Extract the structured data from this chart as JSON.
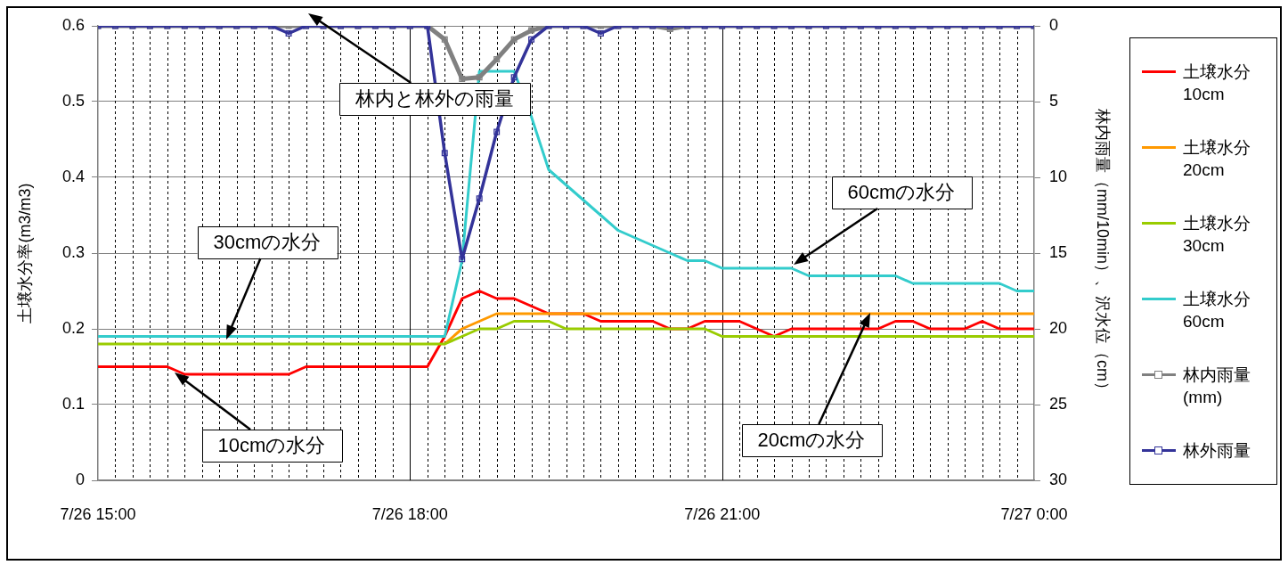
{
  "chart_data": {
    "type": "line",
    "ylabel": "土壌水分率(m3/m3)",
    "y2label": "林内雨量（mm/10min）、沢水位（cm）",
    "x": [
      "--07-26T15:00",
      "--07-26T15:10",
      "--07-26T15:20",
      "--07-26T15:30",
      "--07-26T15:40",
      "--07-26T15:50",
      "--07-26T16:00",
      "--07-26T16:10",
      "--07-26T16:20",
      "--07-26T16:30",
      "--07-26T16:40",
      "--07-26T16:50",
      "--07-26T17:00",
      "--07-26T17:10",
      "--07-26T17:20",
      "--07-26T17:30",
      "--07-26T17:40",
      "--07-26T17:50",
      "--07-26T18:00",
      "--07-26T18:10",
      "--07-26T18:20",
      "--07-26T18:30",
      "--07-26T18:40",
      "--07-26T18:50",
      "--07-26T19:00",
      "--07-26T19:10",
      "--07-26T19:20",
      "--07-26T19:30",
      "--07-26T19:40",
      "--07-26T19:50",
      "--07-26T20:00",
      "--07-26T20:10",
      "--07-26T20:20",
      "--07-26T20:30",
      "--07-26T20:40",
      "--07-26T20:50",
      "--07-26T21:00",
      "--07-26T21:10",
      "--07-26T21:20",
      "--07-26T21:30",
      "--07-26T21:40",
      "--07-26T21:50",
      "--07-26T22:00",
      "--07-26T22:10",
      "--07-26T22:20",
      "--07-26T22:30",
      "--07-26T22:40",
      "--07-26T22:50",
      "--07-26T23:00",
      "--07-26T23:10",
      "--07-26T23:20",
      "--07-26T23:30",
      "--07-26T23:40",
      "--07-26T23:50",
      "--07-27T00:00"
    ],
    "series": [
      {
        "name": "土壌水分 10cm",
        "color": "#ff0000",
        "marker": "none",
        "values": [
          0.15,
          0.15,
          0.15,
          0.15,
          0.15,
          0.14,
          0.14,
          0.14,
          0.14,
          0.14,
          0.14,
          0.14,
          0.15,
          0.15,
          0.15,
          0.15,
          0.15,
          0.15,
          0.15,
          0.15,
          0.19,
          0.24,
          0.25,
          0.24,
          0.24,
          0.23,
          0.22,
          0.22,
          0.22,
          0.21,
          0.21,
          0.21,
          0.21,
          0.2,
          0.2,
          0.21,
          0.21,
          0.21,
          0.2,
          0.19,
          0.2,
          0.2,
          0.2,
          0.2,
          0.2,
          0.2,
          0.21,
          0.21,
          0.2,
          0.2,
          0.2,
          0.21,
          0.2,
          0.2,
          0.2
        ]
      },
      {
        "name": "土壌水分 20cm",
        "color": "#ff9900",
        "marker": "none",
        "values": [
          null,
          null,
          null,
          null,
          null,
          null,
          null,
          null,
          null,
          null,
          null,
          null,
          null,
          null,
          null,
          null,
          null,
          null,
          null,
          null,
          0.18,
          0.2,
          0.21,
          0.22,
          0.22,
          0.22,
          0.22,
          0.22,
          0.22,
          0.22,
          0.22,
          0.22,
          0.22,
          0.22,
          0.22,
          0.22,
          0.22,
          0.22,
          0.22,
          0.22,
          0.22,
          0.22,
          0.22,
          0.22,
          0.22,
          0.22,
          0.22,
          0.22,
          0.22,
          0.22,
          0.22,
          0.22,
          0.22,
          0.22,
          0.22
        ]
      },
      {
        "name": "土壌水分 30cm",
        "color": "#99cc00",
        "marker": "none",
        "values": [
          0.18,
          0.18,
          0.18,
          0.18,
          0.18,
          0.18,
          0.18,
          0.18,
          0.18,
          0.18,
          0.18,
          0.18,
          0.18,
          0.18,
          0.18,
          0.18,
          0.18,
          0.18,
          0.18,
          0.18,
          0.18,
          0.19,
          0.2,
          0.2,
          0.21,
          0.21,
          0.21,
          0.2,
          0.2,
          0.2,
          0.2,
          0.2,
          0.2,
          0.2,
          0.2,
          0.2,
          0.19,
          0.19,
          0.19,
          0.19,
          0.19,
          0.19,
          0.19,
          0.19,
          0.19,
          0.19,
          0.19,
          0.19,
          0.19,
          0.19,
          0.19,
          0.19,
          0.19,
          0.19,
          0.19
        ]
      },
      {
        "name": "土壌水分 60cm",
        "color": "#33cccc",
        "marker": "none",
        "values": [
          0.19,
          0.19,
          0.19,
          0.19,
          0.19,
          0.19,
          0.19,
          0.19,
          0.19,
          0.19,
          0.19,
          0.19,
          0.19,
          0.19,
          0.19,
          0.19,
          0.19,
          0.19,
          0.19,
          0.19,
          0.19,
          0.29,
          0.54,
          0.54,
          0.54,
          0.48,
          0.41,
          0.39,
          0.37,
          0.35,
          0.33,
          0.32,
          0.31,
          0.3,
          0.29,
          0.29,
          0.28,
          0.28,
          0.28,
          0.28,
          0.28,
          0.27,
          0.27,
          0.27,
          0.27,
          0.27,
          0.27,
          0.26,
          0.26,
          0.26,
          0.26,
          0.26,
          0.26,
          0.25,
          0.25
        ]
      },
      {
        "name": "林内雨量 (mm)",
        "color": "#808080",
        "marker": "square",
        "axis": "y2",
        "values": [
          0,
          0,
          0,
          0,
          0,
          0,
          0,
          0,
          0,
          0,
          0,
          0,
          0,
          0,
          0,
          0,
          0,
          0,
          0,
          0,
          0.9,
          3.5,
          3.4,
          2.2,
          0.9,
          0.3,
          0,
          0,
          0,
          0,
          0,
          0,
          0,
          0.2,
          0,
          0,
          0,
          0,
          0,
          0,
          0,
          0,
          0,
          0,
          0,
          0,
          0,
          0,
          0,
          0,
          0,
          0,
          0,
          0,
          0
        ]
      },
      {
        "name": "林外雨量",
        "color": "#333399",
        "marker": "square",
        "axis": "y2",
        "values": [
          0,
          0,
          0,
          0,
          0,
          0,
          0,
          0,
          0,
          0,
          0,
          0.5,
          0,
          0,
          0,
          0,
          0,
          0,
          0,
          0,
          8.4,
          15.4,
          11.4,
          7.0,
          3.4,
          0.9,
          0,
          0,
          0,
          0.5,
          0,
          0,
          0,
          0,
          0,
          0,
          0,
          0,
          0,
          0,
          0,
          0,
          0,
          0,
          0,
          0,
          0,
          0,
          0,
          0,
          0,
          0,
          0,
          0,
          0
        ]
      }
    ],
    "xlim": [
      "--07-26T15:00",
      "--07-27T00:00"
    ],
    "xticks": [
      {
        "value": "--07-26T15:00",
        "label": "7/26 15:00"
      },
      {
        "value": "--07-26T15:10",
        "label": null
      },
      {
        "value": "--07-26T15:20",
        "label": null
      },
      {
        "value": "--07-26T15:30",
        "label": null
      },
      {
        "value": "--07-26T15:40",
        "label": null
      },
      {
        "value": "--07-26T15:50",
        "label": null
      },
      {
        "value": "--07-26T16:00",
        "label": null
      },
      {
        "value": "--07-26T16:10",
        "label": null
      },
      {
        "value": "--07-26T16:20",
        "label": null
      },
      {
        "value": "--07-26T16:30",
        "label": null
      },
      {
        "value": "--07-26T16:40",
        "label": null
      },
      {
        "value": "--07-26T16:50",
        "label": null
      },
      {
        "value": "--07-26T17:00",
        "label": null
      },
      {
        "value": "--07-26T17:10",
        "label": null
      },
      {
        "value": "--07-26T17:20",
        "label": null
      },
      {
        "value": "--07-26T17:30",
        "label": null
      },
      {
        "value": "--07-26T17:40",
        "label": null
      },
      {
        "value": "--07-26T17:50",
        "label": null
      },
      {
        "value": "--07-26T18:00",
        "label": "7/26 18:00"
      },
      {
        "value": "--07-26T18:10",
        "label": null
      },
      {
        "value": "--07-26T18:20",
        "label": null
      },
      {
        "value": "--07-26T18:30",
        "label": null
      },
      {
        "value": "--07-26T18:40",
        "label": null
      },
      {
        "value": "--07-26T18:50",
        "label": null
      },
      {
        "value": "--07-26T19:00",
        "label": null
      },
      {
        "value": "--07-26T19:10",
        "label": null
      },
      {
        "value": "--07-26T19:20",
        "label": null
      },
      {
        "value": "--07-26T19:30",
        "label": null
      },
      {
        "value": "--07-26T19:40",
        "label": null
      },
      {
        "value": "--07-26T19:50",
        "label": null
      },
      {
        "value": "--07-26T20:00",
        "label": null
      },
      {
        "value": "--07-26T20:10",
        "label": null
      },
      {
        "value": "--07-26T20:20",
        "label": null
      },
      {
        "value": "--07-26T20:30",
        "label": null
      },
      {
        "value": "--07-26T20:40",
        "label": null
      },
      {
        "value": "--07-26T20:50",
        "label": null
      },
      {
        "value": "--07-26T21:00",
        "label": "7/26 21:00"
      },
      {
        "value": "--07-26T21:10",
        "label": null
      },
      {
        "value": "--07-26T21:20",
        "label": null
      },
      {
        "value": "--07-26T21:30",
        "label": null
      },
      {
        "value": "--07-26T21:40",
        "label": null
      },
      {
        "value": "--07-26T21:50",
        "label": null
      },
      {
        "value": "--07-26T22:00",
        "label": null
      },
      {
        "value": "--07-26T22:10",
        "label": null
      },
      {
        "value": "--07-26T22:20",
        "label": null
      },
      {
        "value": "--07-26T22:30",
        "label": null
      },
      {
        "value": "--07-26T22:40",
        "label": null
      },
      {
        "value": "--07-26T22:50",
        "label": null
      },
      {
        "value": "--07-26T23:00",
        "label": null
      },
      {
        "value": "--07-26T23:10",
        "label": null
      },
      {
        "value": "--07-26T23:20",
        "label": null
      },
      {
        "value": "--07-26T23:30",
        "label": null
      },
      {
        "value": "--07-26T23:40",
        "label": null
      },
      {
        "value": "--07-26T23:50",
        "label": null
      },
      {
        "value": "--07-27T00:00",
        "label": "7/27 0:00"
      }
    ],
    "ylim": [
      0,
      0.6
    ],
    "yticks": [
      0,
      0.1,
      0.2,
      0.3,
      0.4,
      0.5,
      0.6
    ],
    "y2lim": [
      30,
      0
    ],
    "y2ticks": [
      0,
      5,
      10,
      15,
      20,
      25,
      30
    ],
    "grid": true,
    "legend": "right",
    "annotations": [
      "林内と林外の雨量",
      "60cmの水分",
      "30cmの水分",
      "10cmの水分",
      "20cmの水分"
    ]
  }
}
